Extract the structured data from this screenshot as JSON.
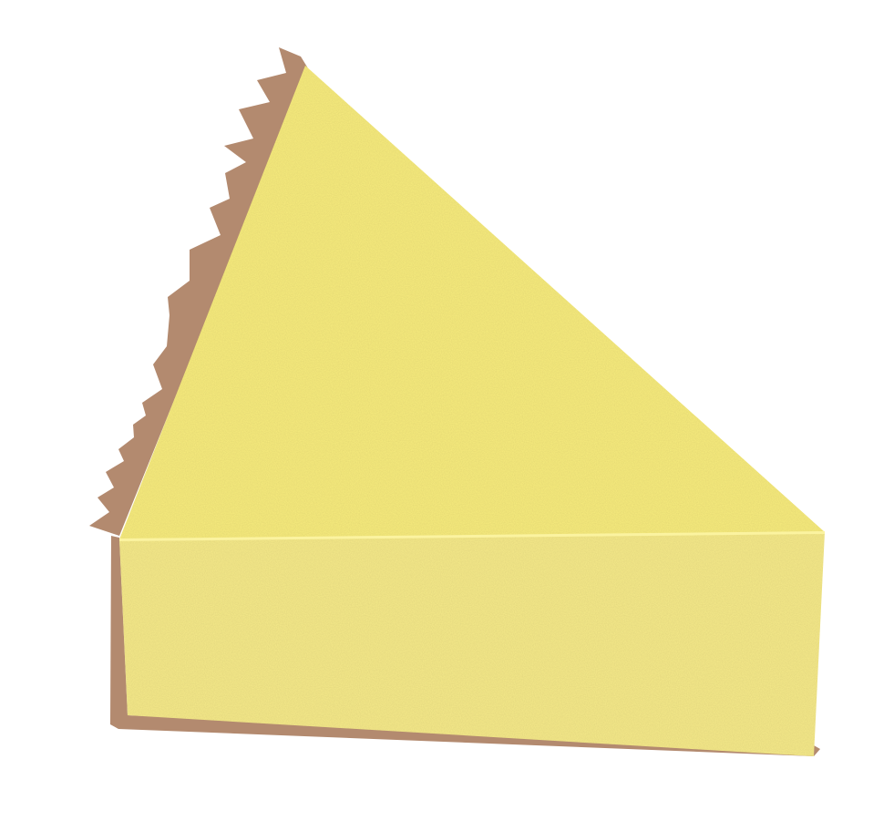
{
  "scene": {
    "subject": "cheesecake-slice",
    "colors": {
      "background": "#ffffff",
      "crust": "#b38a6f",
      "crust_dark": "#a57c62",
      "filling_top": "#f8ec7e",
      "filling_side": "#f6ea8a",
      "highlight": "#fbf3a0"
    }
  }
}
